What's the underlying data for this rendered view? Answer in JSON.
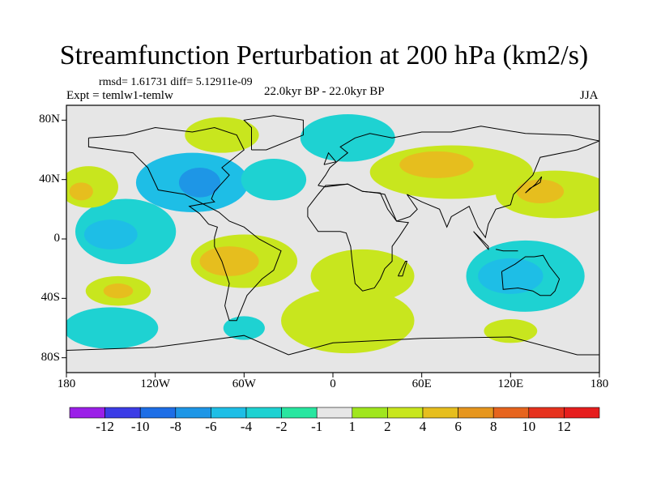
{
  "title": "Streamfunction Perturbation at 200 hPa (km2/s)",
  "stats": "rmsd= 1.61731 diff= 5.12911e-09",
  "experiment": "Expt = temlw1-temlw",
  "period": "22.0kyr BP - 22.0kyr BP",
  "season": "JJA",
  "chart_data": {
    "type": "contour-map",
    "projection": "cylindrical equidistant",
    "lat_ticks": [
      {
        "value": 80,
        "label": "80N"
      },
      {
        "value": 40,
        "label": "40N"
      },
      {
        "value": 0,
        "label": "0"
      },
      {
        "value": -40,
        "label": "40S"
      },
      {
        "value": -80,
        "label": "80S"
      }
    ],
    "lon_ticks": [
      {
        "value": -180,
        "label": "180"
      },
      {
        "value": -120,
        "label": "120W"
      },
      {
        "value": -60,
        "label": "60W"
      },
      {
        "value": 0,
        "label": "0"
      },
      {
        "value": 60,
        "label": "60E"
      },
      {
        "value": 120,
        "label": "120E"
      },
      {
        "value": 180,
        "label": "180"
      }
    ],
    "xlim": [
      -180,
      180
    ],
    "ylim": [
      -90,
      90
    ],
    "colorbar": {
      "labels": [
        "-12",
        "-10",
        "-8",
        "-6",
        "-4",
        "-2",
        "-1",
        "1",
        "2",
        "4",
        "6",
        "8",
        "10",
        "12"
      ],
      "colors": [
        "#9b1fe8",
        "#3c3ce6",
        "#1e6ee6",
        "#1e96e6",
        "#1ebee6",
        "#1ed2d2",
        "#28e6a0",
        "#e6e6e6",
        "#a0e61e",
        "#c8e61e",
        "#e6be1e",
        "#e6961e",
        "#e6641e",
        "#e6321e",
        "#e61e1e"
      ]
    },
    "regions": [
      {
        "lon": -95,
        "lat": 38,
        "rx": 38,
        "ry": 20,
        "level": "-4"
      },
      {
        "lon": -90,
        "lat": 38,
        "rx": 14,
        "ry": 10,
        "level": "-6"
      },
      {
        "lon": -40,
        "lat": 40,
        "rx": 22,
        "ry": 14,
        "level": "-2"
      },
      {
        "lon": -140,
        "lat": 5,
        "rx": 34,
        "ry": 22,
        "level": "-2"
      },
      {
        "lon": -150,
        "lat": 3,
        "rx": 18,
        "ry": 10,
        "level": "-4"
      },
      {
        "lon": -150,
        "lat": -60,
        "rx": 32,
        "ry": 14,
        "level": "-2"
      },
      {
        "lon": 130,
        "lat": -25,
        "rx": 40,
        "ry": 24,
        "level": "-2"
      },
      {
        "lon": 120,
        "lat": -25,
        "rx": 22,
        "ry": 12,
        "level": "-4"
      },
      {
        "lon": -60,
        "lat": -60,
        "rx": 14,
        "ry": 8,
        "level": "-2"
      },
      {
        "lon": 120,
        "lat": -62,
        "rx": 18,
        "ry": 8,
        "level": "2"
      },
      {
        "lon": -75,
        "lat": 70,
        "rx": 25,
        "ry": 12,
        "level": "2"
      },
      {
        "lon": 10,
        "lat": 68,
        "rx": 32,
        "ry": 16,
        "level": "-2"
      },
      {
        "lon": -60,
        "lat": -15,
        "rx": 36,
        "ry": 18,
        "level": "2"
      },
      {
        "lon": -70,
        "lat": -15,
        "rx": 20,
        "ry": 10,
        "level": "4"
      },
      {
        "lon": 20,
        "lat": -25,
        "rx": 35,
        "ry": 18,
        "level": "2"
      },
      {
        "lon": 10,
        "lat": -55,
        "rx": 45,
        "ry": 22,
        "level": "2"
      },
      {
        "lon": 80,
        "lat": 45,
        "rx": 55,
        "ry": 18,
        "level": "2"
      },
      {
        "lon": 70,
        "lat": 50,
        "rx": 25,
        "ry": 9,
        "level": "4"
      },
      {
        "lon": 150,
        "lat": 30,
        "rx": 40,
        "ry": 16,
        "level": "2"
      },
      {
        "lon": 140,
        "lat": 32,
        "rx": 16,
        "ry": 8,
        "level": "4"
      },
      {
        "lon": -165,
        "lat": 35,
        "rx": 20,
        "ry": 14,
        "level": "2"
      },
      {
        "lon": -170,
        "lat": 32,
        "rx": 8,
        "ry": 6,
        "level": "4"
      },
      {
        "lon": -145,
        "lat": -35,
        "rx": 22,
        "ry": 10,
        "level": "2"
      },
      {
        "lon": -145,
        "lat": -35,
        "rx": 10,
        "ry": 5,
        "level": "4"
      }
    ],
    "coastline_lines": [
      [
        [
          -165,
          68
        ],
        [
          -140,
          70
        ],
        [
          -120,
          75
        ],
        [
          -95,
          72
        ],
        [
          -80,
          75
        ],
        [
          -65,
          70
        ],
        [
          -60,
          60
        ],
        [
          -75,
          48
        ],
        [
          -70,
          43
        ],
        [
          -80,
          32
        ],
        [
          -82,
          27
        ],
        [
          -80,
          25
        ],
        [
          -97,
          22
        ],
        [
          -90,
          17
        ],
        [
          -84,
          10
        ],
        [
          -78,
          8
        ],
        [
          -80,
          1
        ],
        [
          -80,
          -5
        ],
        [
          -75,
          -15
        ],
        [
          -70,
          -30
        ],
        [
          -73,
          -45
        ],
        [
          -70,
          -55
        ],
        [
          -65,
          -55
        ],
        [
          -58,
          -38
        ],
        [
          -48,
          -27
        ],
        [
          -40,
          -21
        ],
        [
          -35,
          -8
        ],
        [
          -50,
          0
        ],
        [
          -60,
          8
        ],
        [
          -70,
          12
        ],
        [
          -77,
          18
        ],
        [
          -100,
          30
        ],
        [
          -118,
          33
        ],
        [
          -125,
          48
        ],
        [
          -135,
          58
        ],
        [
          -150,
          60
        ],
        [
          -165,
          62
        ],
        [
          -165,
          68
        ]
      ],
      [
        [
          -10,
          36
        ],
        [
          -5,
          43
        ],
        [
          -2,
          48
        ],
        [
          5,
          54
        ],
        [
          10,
          58
        ],
        [
          5,
          62
        ],
        [
          15,
          68
        ],
        [
          25,
          71
        ],
        [
          40,
          68
        ],
        [
          60,
          72
        ],
        [
          80,
          72
        ],
        [
          100,
          76
        ],
        [
          130,
          71
        ],
        [
          160,
          70
        ],
        [
          180,
          66
        ],
        [
          165,
          60
        ],
        [
          140,
          55
        ],
        [
          135,
          43
        ],
        [
          122,
          30
        ],
        [
          120,
          23
        ],
        [
          110,
          20
        ],
        [
          105,
          10
        ],
        [
          103,
          1
        ],
        [
          98,
          8
        ],
        [
          92,
          22
        ],
        [
          80,
          15
        ],
        [
          77,
          8
        ],
        [
          72,
          20
        ],
        [
          60,
          25
        ],
        [
          50,
          30
        ],
        [
          57,
          20
        ],
        [
          52,
          15
        ],
        [
          43,
          12
        ],
        [
          35,
          30
        ],
        [
          30,
          31
        ],
        [
          20,
          32
        ],
        [
          10,
          37
        ],
        [
          -5,
          35
        ],
        [
          -10,
          36
        ]
      ],
      [
        [
          -17,
          21
        ],
        [
          -17,
          15
        ],
        [
          -10,
          5
        ],
        [
          5,
          5
        ],
        [
          9,
          4
        ],
        [
          12,
          -5
        ],
        [
          13,
          -15
        ],
        [
          15,
          -30
        ],
        [
          20,
          -35
        ],
        [
          28,
          -33
        ],
        [
          32,
          -27
        ],
        [
          35,
          -20
        ],
        [
          40,
          -15
        ],
        [
          40,
          -5
        ],
        [
          45,
          2
        ],
        [
          51,
          11
        ],
        [
          43,
          12
        ],
        [
          37,
          20
        ],
        [
          32,
          31
        ],
        [
          20,
          32
        ],
        [
          10,
          37
        ],
        [
          -5,
          36
        ],
        [
          -10,
          30
        ],
        [
          -17,
          21
        ]
      ],
      [
        [
          114,
          -22
        ],
        [
          115,
          -34
        ],
        [
          125,
          -33
        ],
        [
          135,
          -35
        ],
        [
          140,
          -38
        ],
        [
          147,
          -38
        ],
        [
          150,
          -35
        ],
        [
          153,
          -27
        ],
        [
          146,
          -18
        ],
        [
          142,
          -11
        ],
        [
          136,
          -12
        ],
        [
          130,
          -12
        ],
        [
          123,
          -17
        ],
        [
          114,
          -22
        ]
      ],
      [
        [
          -55,
          60
        ],
        [
          -45,
          60
        ],
        [
          -20,
          70
        ],
        [
          -20,
          80
        ],
        [
          -40,
          83
        ],
        [
          -60,
          80
        ],
        [
          -55,
          75
        ],
        [
          -55,
          60
        ]
      ],
      [
        [
          -180,
          -75
        ],
        [
          -120,
          -73
        ],
        [
          -60,
          -65
        ],
        [
          -30,
          -78
        ],
        [
          0,
          -70
        ],
        [
          60,
          -67
        ],
        [
          120,
          -66
        ],
        [
          165,
          -78
        ],
        [
          180,
          -78
        ]
      ],
      [
        [
          44,
          -25
        ],
        [
          49,
          -15
        ],
        [
          50,
          -15
        ],
        [
          47,
          -25
        ],
        [
          44,
          -25
        ]
      ],
      [
        [
          130,
          31
        ],
        [
          133,
          34
        ],
        [
          140,
          38
        ],
        [
          141,
          42
        ],
        [
          137,
          37
        ],
        [
          130,
          31
        ]
      ],
      [
        [
          95,
          5
        ],
        [
          105,
          -5
        ],
        [
          105,
          -7
        ],
        [
          95,
          5
        ]
      ],
      [
        [
          110,
          -7
        ],
        [
          115,
          -8
        ],
        [
          125,
          -8
        ]
      ],
      [
        [
          -6,
          50
        ],
        [
          -3,
          58
        ],
        [
          2,
          52
        ],
        [
          -6,
          50
        ]
      ]
    ]
  }
}
